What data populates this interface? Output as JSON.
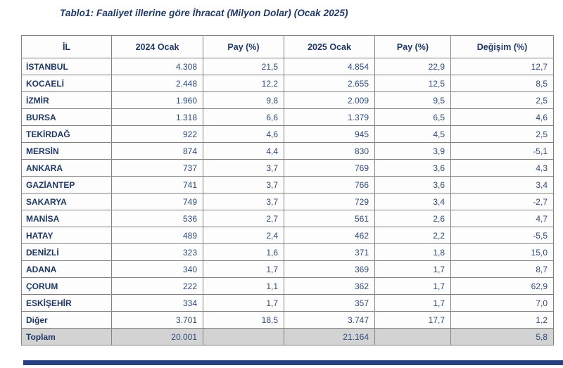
{
  "title": "Tablo1: Faaliyet illerine göre İhracat (Milyon Dolar) (Ocak 2025)",
  "colors": {
    "heading_navy": "#1f3864",
    "value_blue": "#2e4b7e",
    "grid_gray": "#838383",
    "total_row_bg": "#d3d3d3",
    "bottom_rule_navy": "#26417d"
  },
  "table": {
    "columns": [
      "İL",
      "2024 Ocak",
      "Pay (%)",
      "2025 Ocak",
      "Pay (%)",
      "Değişim (%)"
    ],
    "rows": [
      [
        "İSTANBUL",
        "4.308",
        "21,5",
        "4.854",
        "22,9",
        "12,7"
      ],
      [
        "KOCAELİ",
        "2.448",
        "12,2",
        "2.655",
        "12,5",
        "8,5"
      ],
      [
        "İZMİR",
        "1.960",
        "9,8",
        "2.009",
        "9,5",
        "2,5"
      ],
      [
        "BURSA",
        "1.318",
        "6,6",
        "1.379",
        "6,5",
        "4,6"
      ],
      [
        "TEKİRDAĞ",
        "922",
        "4,6",
        "945",
        "4,5",
        "2,5"
      ],
      [
        "MERSİN",
        "874",
        "4,4",
        "830",
        "3,9",
        "-5,1"
      ],
      [
        "ANKARA",
        "737",
        "3,7",
        "769",
        "3,6",
        "4,3"
      ],
      [
        "GAZİANTEP",
        "741",
        "3,7",
        "766",
        "3,6",
        "3,4"
      ],
      [
        "SAKARYA",
        "749",
        "3,7",
        "729",
        "3,4",
        "-2,7"
      ],
      [
        "MANİSA",
        "536",
        "2,7",
        "561",
        "2,6",
        "4,7"
      ],
      [
        "HATAY",
        "489",
        "2,4",
        "462",
        "2,2",
        "-5,5"
      ],
      [
        "DENİZLİ",
        "323",
        "1,6",
        "371",
        "1,8",
        "15,0"
      ],
      [
        "ADANA",
        "340",
        "1,7",
        "369",
        "1,7",
        "8,7"
      ],
      [
        "ÇORUM",
        "222",
        "1,1",
        "362",
        "1,7",
        "62,9"
      ],
      [
        "ESKİŞEHİR",
        "334",
        "1,7",
        "357",
        "1,7",
        "7,0"
      ],
      [
        "Diğer",
        "3.701",
        "18,5",
        "3.747",
        "17,7",
        "1,2"
      ]
    ],
    "total_row": [
      "Toplam",
      "20.001",
      "",
      "21.164",
      "",
      "5,8"
    ]
  }
}
